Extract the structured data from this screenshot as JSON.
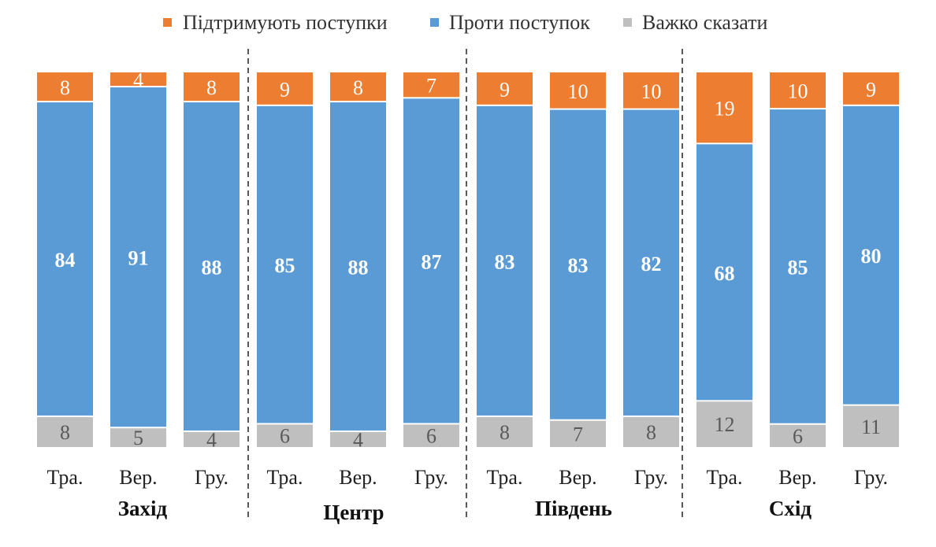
{
  "chart_data": {
    "type": "bar",
    "stacked": true,
    "normalized_percent": true,
    "legend_position": "top",
    "grid": false,
    "ylim": [
      0,
      100
    ],
    "colors": {
      "support": "#ED7D31",
      "against": "#5B9BD5",
      "unsure": "#BFBFBF",
      "label_dark": "#595959",
      "label_white": "#FFFFFF",
      "divider": "#595959"
    },
    "categories": [
      "Тра.",
      "Вер.",
      "Гру.",
      "Тра.",
      "Вер.",
      "Гру.",
      "Тра.",
      "Вер.",
      "Гру.",
      "Тра.",
      "Вер.",
      "Гру."
    ],
    "groups": [
      {
        "label": "Захід",
        "categories": [
          "Тра.",
          "Вер.",
          "Гру."
        ]
      },
      {
        "label": "Центр",
        "categories": [
          "Тра.",
          "Вер.",
          "Гру."
        ]
      },
      {
        "label": "Південь",
        "categories": [
          "Тра.",
          "Вер.",
          "Гру."
        ]
      },
      {
        "label": "Схід",
        "categories": [
          "Тра.",
          "Вер.",
          "Гру."
        ]
      }
    ],
    "series": [
      {
        "name": "Підтримують поступки",
        "key": "support",
        "values": [
          8,
          4,
          8,
          9,
          8,
          7,
          9,
          10,
          10,
          19,
          10,
          9
        ]
      },
      {
        "name": "Проти поступок",
        "key": "against",
        "values": [
          84,
          91,
          88,
          85,
          88,
          87,
          83,
          83,
          82,
          68,
          85,
          80
        ]
      },
      {
        "name": "Важко сказати",
        "key": "unsure",
        "values": [
          8,
          5,
          4,
          6,
          4,
          6,
          8,
          7,
          8,
          12,
          6,
          11
        ]
      }
    ]
  }
}
